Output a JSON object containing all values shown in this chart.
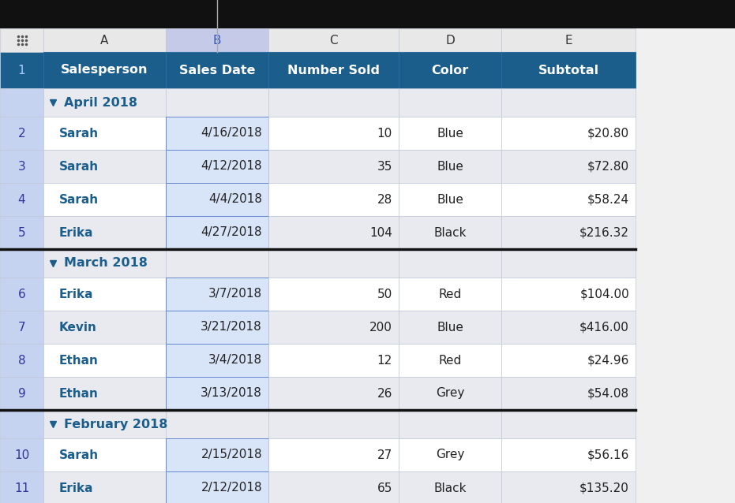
{
  "col_letters": [
    "",
    "A",
    "B",
    "C",
    "D",
    "E"
  ],
  "col_headers": [
    "",
    "Salesperson",
    "Sales Date",
    "Number Sold",
    "Color",
    "Subtotal"
  ],
  "header_bg": "#1b5e8b",
  "header_fg": "#ffffff",
  "col_letter_selected_bg": "#c5cae9",
  "col_letter_selected_col": 2,
  "row_num_bg": "#c5d3f0",
  "group_row_bg": "#e8eaf0",
  "data_row_bg_odd": "#ffffff",
  "data_row_bg_even": "#e8eaf0",
  "group_label_color": "#1b5e8b",
  "salesperson_color": "#1b5e8b",
  "border_color": "#c0c8d8",
  "thick_border_color": "#111111",
  "fig_bg": "#f0f0f0",
  "col_letter_bg": "#f0f0f0",
  "col_letter_color": "#333333",
  "top_bar_bg": "#111111",
  "rows": [
    {
      "type": "group",
      "label": "April 2018"
    },
    {
      "type": "data",
      "row_num": "2",
      "salesperson": "Sarah",
      "date": "4/16/2018",
      "num_sold": "10",
      "color": "Blue",
      "subtotal": "$20.80",
      "bg": "odd"
    },
    {
      "type": "data",
      "row_num": "3",
      "salesperson": "Sarah",
      "date": "4/12/2018",
      "num_sold": "35",
      "color": "Blue",
      "subtotal": "$72.80",
      "bg": "even"
    },
    {
      "type": "data",
      "row_num": "4",
      "salesperson": "Sarah",
      "date": "4/4/2018",
      "num_sold": "28",
      "color": "Blue",
      "subtotal": "$58.24",
      "bg": "odd"
    },
    {
      "type": "data",
      "row_num": "5",
      "salesperson": "Erika",
      "date": "4/27/2018",
      "num_sold": "104",
      "color": "Black",
      "subtotal": "$216.32",
      "bg": "even"
    },
    {
      "type": "group",
      "label": "March 2018"
    },
    {
      "type": "data",
      "row_num": "6",
      "salesperson": "Erika",
      "date": "3/7/2018",
      "num_sold": "50",
      "color": "Red",
      "subtotal": "$104.00",
      "bg": "odd"
    },
    {
      "type": "data",
      "row_num": "7",
      "salesperson": "Kevin",
      "date": "3/21/2018",
      "num_sold": "200",
      "color": "Blue",
      "subtotal": "$416.00",
      "bg": "even"
    },
    {
      "type": "data",
      "row_num": "8",
      "salesperson": "Ethan",
      "date": "3/4/2018",
      "num_sold": "12",
      "color": "Red",
      "subtotal": "$24.96",
      "bg": "odd"
    },
    {
      "type": "data",
      "row_num": "9",
      "salesperson": "Ethan",
      "date": "3/13/2018",
      "num_sold": "26",
      "color": "Grey",
      "subtotal": "$54.08",
      "bg": "even"
    },
    {
      "type": "group",
      "label": "February 2018"
    },
    {
      "type": "data",
      "row_num": "10",
      "salesperson": "Sarah",
      "date": "2/15/2018",
      "num_sold": "27",
      "color": "Grey",
      "subtotal": "$56.16",
      "bg": "odd"
    },
    {
      "type": "data",
      "row_num": "11",
      "salesperson": "Erika",
      "date": "2/12/2018",
      "num_sold": "65",
      "color": "Black",
      "subtotal": "$135.20",
      "bg": "even"
    }
  ]
}
